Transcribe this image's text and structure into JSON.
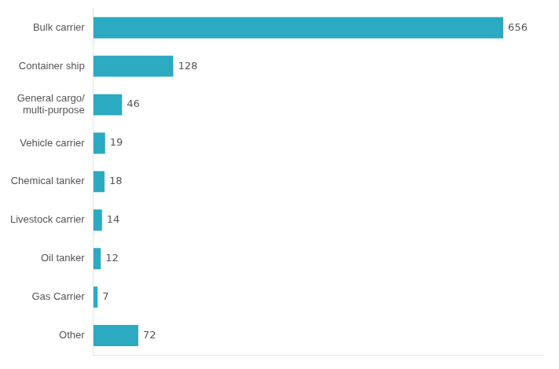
{
  "chart_data": {
    "type": "bar",
    "orientation": "horizontal",
    "categories": [
      "Other",
      "Gas Carrier",
      "Oil tanker",
      "Livestock carrier",
      "Chemical tanker",
      "Vehicle carrier",
      "General cargo/\nmulti-purpose",
      "Container ship",
      "Bulk carrier"
    ],
    "values": [
      72,
      7,
      12,
      14,
      18,
      19,
      46,
      128,
      656
    ],
    "color": "#2baac1",
    "xlim": [
      0,
      720
    ],
    "grid": false,
    "data_labels": true,
    "tick_labels": "y"
  }
}
